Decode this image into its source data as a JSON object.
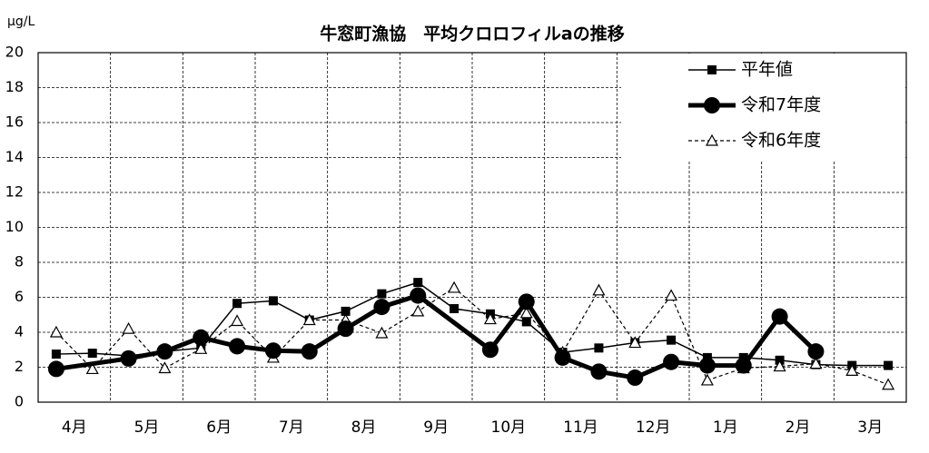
{
  "chart_data": {
    "type": "line",
    "title": "牛窓町漁協　平均クロロフィルaの推移",
    "y_unit": "μg/L",
    "categories": [
      "4月",
      "5月",
      "6月",
      "7月",
      "8月",
      "9月",
      "10月",
      "11月",
      "12月",
      "1月",
      "2月",
      "3月"
    ],
    "xlim": [
      0,
      12
    ],
    "ylim": [
      0,
      20
    ],
    "yticks": [
      0,
      2,
      4,
      6,
      8,
      10,
      12,
      14,
      16,
      18,
      20
    ],
    "grid": true,
    "legend": "top-right",
    "series": [
      {
        "name": "平年値",
        "color": "#000000",
        "marker": "square",
        "line_width": 1.5,
        "dash": "solid",
        "x": [
          0.25,
          0.75,
          1.25,
          1.75,
          2.25,
          2.75,
          3.25,
          3.75,
          4.25,
          4.75,
          5.25,
          5.75,
          6.25,
          6.75,
          7.25,
          7.75,
          8.25,
          8.75,
          9.25,
          9.75,
          10.25,
          10.75,
          11.25,
          11.75
        ],
        "values": [
          2.75,
          2.8,
          2.65,
          2.9,
          3.1,
          5.65,
          5.8,
          4.7,
          5.2,
          6.2,
          6.85,
          5.35,
          5.05,
          4.6,
          2.85,
          3.1,
          3.4,
          3.55,
          2.55,
          2.55,
          2.4,
          2.15,
          2.1,
          2.1
        ]
      },
      {
        "name": "令和7年度",
        "color": "#000000",
        "marker": "circle",
        "line_width": 5,
        "dash": "solid",
        "x": [
          0.25,
          1.25,
          1.75,
          2.25,
          2.75,
          3.25,
          3.75,
          4.25,
          4.75,
          5.25,
          6.25,
          6.75,
          7.25,
          7.75,
          8.25,
          8.75,
          9.25,
          9.75,
          10.25,
          10.75
        ],
        "values": [
          1.9,
          2.5,
          2.9,
          3.7,
          3.2,
          2.95,
          2.9,
          4.2,
          5.45,
          6.1,
          3.0,
          5.75,
          2.55,
          1.75,
          1.4,
          2.3,
          2.1,
          2.1,
          4.9,
          2.9
        ]
      },
      {
        "name": "令和6年度",
        "color": "#000000",
        "marker": "triangle",
        "line_width": 1.2,
        "dash": "dashed",
        "x": [
          0.25,
          0.75,
          1.25,
          1.75,
          2.25,
          2.75,
          3.25,
          3.75,
          4.25,
          4.75,
          5.25,
          5.75,
          6.25,
          6.75,
          7.25,
          7.75,
          8.25,
          8.75,
          9.25,
          9.75,
          10.25,
          10.75,
          11.25,
          11.75
        ],
        "values": [
          4.0,
          1.9,
          4.2,
          1.95,
          3.05,
          4.65,
          2.55,
          4.7,
          4.7,
          3.95,
          5.2,
          6.55,
          4.75,
          5.1,
          2.85,
          6.4,
          3.4,
          6.1,
          1.25,
          1.95,
          2.05,
          2.2,
          1.8,
          1.0
        ]
      }
    ]
  }
}
